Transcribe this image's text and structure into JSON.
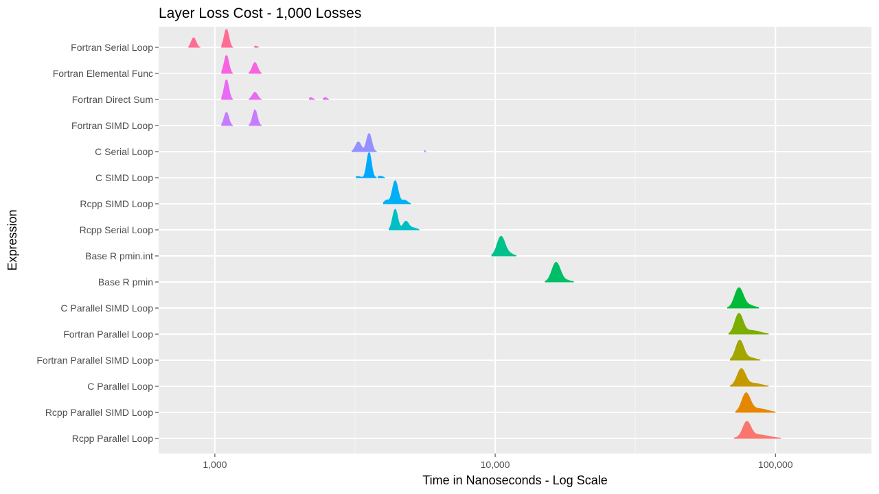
{
  "chart_data": {
    "type": "ridgeline",
    "title": "Layer Loss Cost - 1,000 Losses",
    "xlabel": "Time in Nanoseconds - Log Scale",
    "ylabel": "Expression",
    "x_scale": "log10",
    "xlim": [
      630,
      220000
    ],
    "x_ticks": [
      {
        "value": 1000,
        "label": "1,000"
      },
      {
        "value": 10000,
        "label": "10,000"
      },
      {
        "value": 100000,
        "label": "100,000"
      }
    ],
    "grid": true,
    "legend": "none",
    "categories": [
      {
        "name": "Fortran Serial Loop",
        "color": "#FF6C91",
        "peaks": [
          {
            "x": 840,
            "h": 0.4,
            "w": 0.008
          },
          {
            "x": 1100,
            "h": 0.75,
            "w": 0.008
          },
          {
            "x": 1400,
            "h": 0.06,
            "w": 0.004
          }
        ]
      },
      {
        "name": "Fortran Elemental Func",
        "color": "#F763E0",
        "peaks": [
          {
            "x": 1100,
            "h": 0.75,
            "w": 0.008
          },
          {
            "x": 1390,
            "h": 0.45,
            "w": 0.009
          }
        ]
      },
      {
        "name": "Fortran Direct Sum",
        "color": "#E76BF3",
        "peaks": [
          {
            "x": 1100,
            "h": 0.82,
            "w": 0.008
          },
          {
            "x": 1390,
            "h": 0.3,
            "w": 0.009
          },
          {
            "x": 2200,
            "h": 0.08,
            "w": 0.006
          },
          {
            "x": 2480,
            "h": 0.08,
            "w": 0.006
          }
        ]
      },
      {
        "name": "Fortran SIMD Loop",
        "color": "#C77CFF",
        "peaks": [
          {
            "x": 1100,
            "h": 0.55,
            "w": 0.008
          },
          {
            "x": 1390,
            "h": 0.65,
            "w": 0.008
          }
        ]
      },
      {
        "name": "C Serial Loop",
        "color": "#9590FF",
        "peaks": [
          {
            "x": 3250,
            "h": 0.4,
            "w": 0.01
          },
          {
            "x": 3550,
            "h": 0.75,
            "w": 0.009
          },
          {
            "x": 5600,
            "h": 0.05,
            "w": 0.003
          }
        ]
      },
      {
        "name": "C SIMD Loop",
        "color": "#00A9FF",
        "peaks": [
          {
            "x": 3550,
            "h": 1.05,
            "w": 0.008
          },
          {
            "x": 3250,
            "h": 0.05,
            "w": 0.008
          },
          {
            "x": 3900,
            "h": 0.06,
            "w": 0.008
          }
        ]
      },
      {
        "name": "Rcpp SIMD Loop",
        "color": "#00B0F6",
        "peaks": [
          {
            "x": 4400,
            "h": 0.95,
            "w": 0.01
          },
          {
            "x": 4100,
            "h": 0.15,
            "w": 0.008
          },
          {
            "x": 4750,
            "h": 0.15,
            "w": 0.01
          }
        ]
      },
      {
        "name": "Rcpp Serial Loop",
        "color": "#00BFC4",
        "peaks": [
          {
            "x": 4400,
            "h": 0.85,
            "w": 0.009
          },
          {
            "x": 4800,
            "h": 0.35,
            "w": 0.01
          },
          {
            "x": 5100,
            "h": 0.08,
            "w": 0.012
          }
        ]
      },
      {
        "name": "Base R pmin.int",
        "color": "#00C08B",
        "peaks": [
          {
            "x": 10500,
            "h": 0.8,
            "w": 0.014
          },
          {
            "x": 11300,
            "h": 0.08,
            "w": 0.012
          }
        ]
      },
      {
        "name": "Base R pmin",
        "color": "#00BE67",
        "peaks": [
          {
            "x": 16500,
            "h": 0.8,
            "w": 0.015
          },
          {
            "x": 18000,
            "h": 0.06,
            "w": 0.015
          }
        ]
      },
      {
        "name": "C Parallel SIMD Loop",
        "color": "#00BA38",
        "peaks": [
          {
            "x": 74000,
            "h": 0.8,
            "w": 0.015
          },
          {
            "x": 80000,
            "h": 0.12,
            "w": 0.02
          }
        ]
      },
      {
        "name": "Fortran Parallel Loop",
        "color": "#7CAE00",
        "peaks": [
          {
            "x": 74000,
            "h": 0.8,
            "w": 0.014
          },
          {
            "x": 82000,
            "h": 0.15,
            "w": 0.03
          }
        ]
      },
      {
        "name": "Fortran Parallel SIMD Loop",
        "color": "#A3A500",
        "peaks": [
          {
            "x": 74500,
            "h": 0.8,
            "w": 0.014
          },
          {
            "x": 81000,
            "h": 0.1,
            "w": 0.02
          }
        ]
      },
      {
        "name": "C Parallel Loop",
        "color": "#C49A00",
        "peaks": [
          {
            "x": 75500,
            "h": 0.7,
            "w": 0.015
          },
          {
            "x": 84000,
            "h": 0.12,
            "w": 0.025
          }
        ]
      },
      {
        "name": "Rcpp Parallel SIMD Loop",
        "color": "#E58700",
        "peaks": [
          {
            "x": 78500,
            "h": 0.75,
            "w": 0.015
          },
          {
            "x": 87000,
            "h": 0.15,
            "w": 0.03
          }
        ]
      },
      {
        "name": "Rcpp Parallel Loop",
        "color": "#F8766D",
        "peaks": [
          {
            "x": 79000,
            "h": 0.6,
            "w": 0.014
          },
          {
            "x": 86000,
            "h": 0.15,
            "w": 0.04
          }
        ]
      }
    ]
  }
}
